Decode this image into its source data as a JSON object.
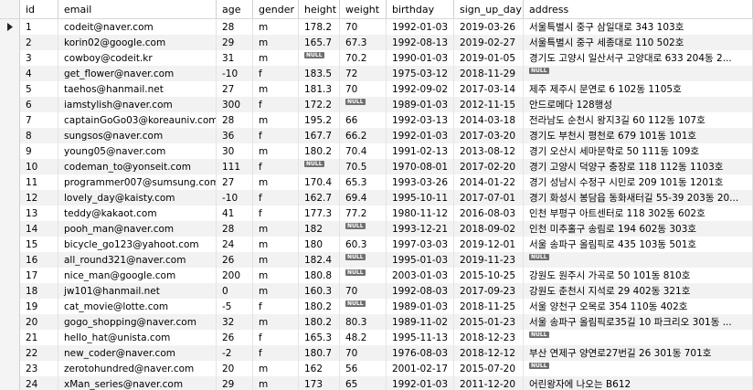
{
  "table": {
    "columns": [
      "id",
      "email",
      "age",
      "gender",
      "height",
      "weight",
      "birthday",
      "sign_up_day",
      "address"
    ],
    "rows": [
      [
        1,
        "codeit@naver.com",
        28,
        "m",
        178.2,
        70,
        "1992-01-03",
        "2019-03-26",
        "서울특별시 중구 삼일대로 343 103호"
      ],
      [
        2,
        "korin02@google.com",
        29,
        "m",
        165.7,
        67.3,
        "1992-08-13",
        "2019-02-27",
        "서울특별시 중구 세종대로 110 502호"
      ],
      [
        3,
        "cowboy@codeit.kr",
        31,
        "m",
        "NULL",
        70.2,
        "1990-01-03",
        "2019-01-05",
        "경기도 고양시 일산서구 고양대로 633 204동 2..."
      ],
      [
        4,
        "get_flower@naver.com",
        -10,
        "f",
        183.5,
        72,
        "1975-03-12",
        "2018-11-29",
        "NULL"
      ],
      [
        5,
        "taehos@hanmail.net",
        27,
        "m",
        181.3,
        70,
        "1992-09-02",
        "2017-03-14",
        "제주 제주시 문연로 6 102동 1105호"
      ],
      [
        6,
        "iamstylish@naver.com",
        300,
        "f",
        172.2,
        "NULL",
        "1989-01-03",
        "2012-11-15",
        "안드로메다 128행성"
      ],
      [
        7,
        "captainGoGo03@koreauniv.com",
        28,
        "m",
        195.2,
        66,
        "1992-03-13",
        "2014-03-18",
        "전라남도 순천시 왕지3길 60 112동 107호"
      ],
      [
        8,
        "sungsos@naver.com",
        36,
        "f",
        167.7,
        66.2,
        "1992-01-03",
        "2017-03-20",
        "경기도 부천시 평천로 679 101동 101호"
      ],
      [
        9,
        "young05@naver.com",
        30,
        "m",
        180.2,
        70.4,
        "1991-02-13",
        "2013-08-12",
        "경기 오산시 세마문학로 50 111동 109호"
      ],
      [
        10,
        "codeman_to@yonseit.com",
        111,
        "f",
        "NULL",
        70.5,
        "1970-08-01",
        "2017-02-20",
        "경기 고양시 덕양구 충장로 118 112동 1103호"
      ],
      [
        11,
        "programmer007@sumsung.com",
        27,
        "m",
        170.4,
        65.3,
        "1993-03-26",
        "2014-01-22",
        "경기 성남시 수정구 시민로 209 101동 1201호"
      ],
      [
        12,
        "lovely_day@kaisty.com",
        -10,
        "f",
        162.7,
        69.4,
        "1995-10-11",
        "2017-07-01",
        "경기 화성시 봉담읍 동화새터길 55-39 203동 20..."
      ],
      [
        13,
        "teddy@kakaot.com",
        41,
        "f",
        177.3,
        77.2,
        "1980-11-12",
        "2016-08-03",
        "인천 부평구 아트센터로 118 302동 602호"
      ],
      [
        14,
        "pooh_man@naver.com",
        28,
        "m",
        182,
        "NULL",
        "1993-12-21",
        "2018-09-02",
        "인천 미추홀구 송림로 194 602동 303호"
      ],
      [
        15,
        "bicycle_go123@yahoot.com",
        24,
        "m",
        180,
        60.3,
        "1997-03-03",
        "2019-12-01",
        "서울 송파구 올림픽로 435 103동 501호"
      ],
      [
        16,
        "all_round321@naver.com",
        26,
        "m",
        182.4,
        "NULL",
        "1995-01-03",
        "2019-11-23",
        "NULL"
      ],
      [
        17,
        "nice_man@google.com",
        200,
        "m",
        180.8,
        "NULL",
        "2003-01-03",
        "2015-10-25",
        "강원도 원주시 가곡로 50 101동 810호"
      ],
      [
        18,
        "jw101@hanmail.net",
        0,
        "m",
        160.3,
        70,
        "1992-08-03",
        "2017-09-23",
        "강원도 춘천시 지석로 29 402동 321호"
      ],
      [
        19,
        "cat_movie@lotte.com",
        -5,
        "f",
        180.2,
        "NULL",
        "1989-01-03",
        "2018-11-25",
        "서울 양천구 오목로 354 110동 402호"
      ],
      [
        20,
        "gogo_shopping@naver.com",
        32,
        "m",
        180.2,
        80.3,
        "1989-11-02",
        "2015-01-23",
        "서울 송파구 올림픽로35길 10 파크리오 301동 ..."
      ],
      [
        21,
        "hello_hat@unista.com",
        26,
        "f",
        165.3,
        48.2,
        "1995-11-13",
        "2018-12-23",
        "NULL"
      ],
      [
        22,
        "new_coder@naver.com",
        -2,
        "f",
        180.7,
        70,
        "1976-08-03",
        "2018-12-12",
        "부산 연제구 양연로27번길 26 301동 701호"
      ],
      [
        23,
        "zerotohundred@naver.com",
        20,
        "m",
        162,
        56,
        "2001-02-17",
        "2015-07-20",
        "NULL"
      ],
      [
        24,
        "xMan_series@naver.com",
        29,
        "m",
        173,
        65,
        "1992-01-03",
        "2011-12-20",
        "어린왕자에 나오는 B612"
      ]
    ]
  }
}
